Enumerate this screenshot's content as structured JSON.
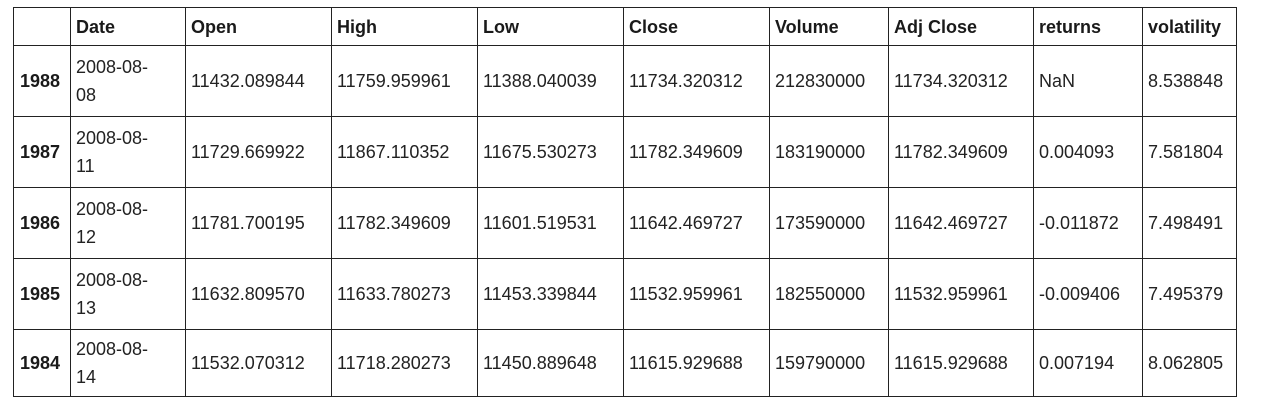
{
  "table": {
    "columns": [
      "",
      "Date",
      "Open",
      "High",
      "Low",
      "Close",
      "Volume",
      "Adj Close",
      "returns",
      "volatility"
    ],
    "rows": [
      {
        "index": "1988",
        "date": [
          "2008-08-",
          "08"
        ],
        "open": "11432.089844",
        "high": "11759.959961",
        "low": "11388.040039",
        "close": "11734.320312",
        "volume": "212830000",
        "adj_close": "11734.320312",
        "returns": "NaN",
        "volatility": "8.538848"
      },
      {
        "index": "1987",
        "date": [
          "2008-08-",
          "11"
        ],
        "open": "11729.669922",
        "high": "11867.110352",
        "low": "11675.530273",
        "close": "11782.349609",
        "volume": "183190000",
        "adj_close": "11782.349609",
        "returns": "0.004093",
        "volatility": "7.581804"
      },
      {
        "index": "1986",
        "date": [
          "2008-08-",
          "12"
        ],
        "open": "11781.700195",
        "high": "11782.349609",
        "low": "11601.519531",
        "close": "11642.469727",
        "volume": "173590000",
        "adj_close": "11642.469727",
        "returns": "-0.011872",
        "volatility": "7.498491"
      },
      {
        "index": "1985",
        "date": [
          "2008-08-",
          "13"
        ],
        "open": "11632.809570",
        "high": "11633.780273",
        "low": "11453.339844",
        "close": "11532.959961",
        "volume": "182550000",
        "adj_close": "11532.959961",
        "returns": "-0.009406",
        "volatility": "7.495379"
      },
      {
        "index": "1984",
        "date": [
          "2008-08-",
          "14"
        ],
        "open": "11532.070312",
        "high": "11718.280273",
        "low": "11450.889648",
        "close": "11615.929688",
        "volume": "159790000",
        "adj_close": "11615.929688",
        "returns": "0.007194",
        "volatility": "8.062805"
      }
    ]
  }
}
